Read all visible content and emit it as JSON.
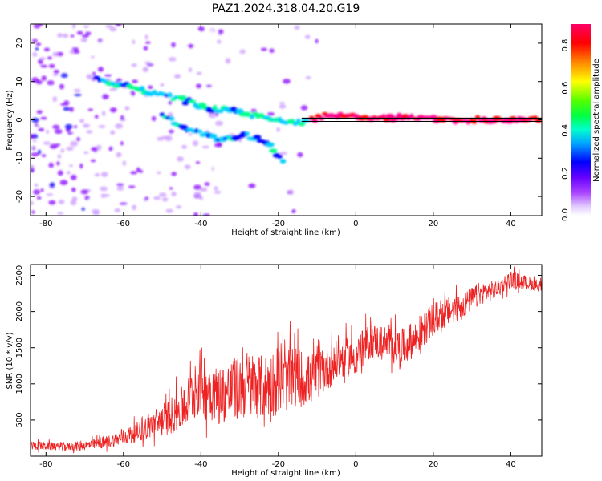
{
  "title": "PAZ1.2024.318.04.20.G19",
  "colors": {
    "snr_line": "#ee2222",
    "track_line": "#000000",
    "colormap": [
      "#ffffff",
      "#cc99ff",
      "#8800ff",
      "#0000ff",
      "#00ccff",
      "#00ff88",
      "#00ff00",
      "#ffff00",
      "#ff8800",
      "#ff0000",
      "#ff0088"
    ]
  },
  "chart_data": [
    {
      "type": "heatmap",
      "title": "",
      "xlabel": "Height of straight line (km)",
      "ylabel": "Frequency (Hz)",
      "xlim": [
        -84,
        48
      ],
      "ylim": [
        -25,
        25
      ],
      "x_ticks": [
        "-80",
        "-60",
        "-40",
        "-20",
        "0",
        "20",
        "40"
      ],
      "y_ticks": [
        "20",
        "10",
        "0",
        "-10",
        "-20"
      ],
      "colorbar": {
        "label": "Normalized spectral amplitude",
        "range": [
          0.0,
          0.9
        ],
        "ticks": [
          "0.0",
          "0.2",
          "0.4",
          "0.6",
          "0.8"
        ]
      },
      "dominant_track": [
        {
          "x": -67,
          "y": 10.5
        },
        {
          "x": -60,
          "y": 9
        },
        {
          "x": -52,
          "y": 7
        },
        {
          "x": -44,
          "y": 5
        },
        {
          "x": -38,
          "y": 3
        },
        {
          "x": -30,
          "y": 2
        },
        {
          "x": -22,
          "y": 0
        },
        {
          "x": -14,
          "y": -0.5
        },
        {
          "x": -8,
          "y": 1
        },
        {
          "x": 0,
          "y": 1
        },
        {
          "x": 8,
          "y": 0.5
        },
        {
          "x": 16,
          "y": 0.5
        },
        {
          "x": 24,
          "y": 0
        },
        {
          "x": 48,
          "y": 0
        }
      ],
      "secondary_track": [
        {
          "x": -50,
          "y": 1
        },
        {
          "x": -42,
          "y": -3
        },
        {
          "x": -36,
          "y": -5
        },
        {
          "x": -28,
          "y": -4
        },
        {
          "x": -23,
          "y": -6
        },
        {
          "x": -18,
          "y": -12
        }
      ],
      "reference_line_y": 0
    },
    {
      "type": "line",
      "title": "",
      "xlabel": "Height of straight line (km)",
      "ylabel": "SNR (10 * v/v)",
      "xlim": [
        -84,
        48
      ],
      "ylim": [
        0,
        2650
      ],
      "x_ticks": [
        "-80",
        "-60",
        "-40",
        "-20",
        "0",
        "20",
        "40"
      ],
      "y_ticks": [
        "500",
        "1000",
        "1500",
        "2000",
        "2500"
      ],
      "series": [
        {
          "x": [
            -84,
            -80,
            -76,
            -72,
            -68,
            -64,
            -60,
            -56,
            -52,
            -48,
            -44,
            -40,
            -36,
            -32,
            -28,
            -24,
            -20,
            -16,
            -12,
            -8,
            -4,
            0,
            4,
            8,
            12,
            16,
            20,
            24,
            28,
            32,
            36,
            40,
            44,
            48
          ],
          "values": [
            150,
            140,
            130,
            140,
            160,
            200,
            260,
            350,
            450,
            550,
            700,
            1050,
            850,
            900,
            1000,
            950,
            1050,
            1100,
            1050,
            1200,
            1350,
            1400,
            1600,
            1550,
            1500,
            1650,
            1900,
            2000,
            2100,
            2250,
            2300,
            2450,
            2400,
            2350
          ],
          "spread": [
            80,
            70,
            70,
            80,
            90,
            110,
            130,
            180,
            250,
            320,
            400,
            600,
            500,
            550,
            600,
            550,
            600,
            550,
            450,
            400,
            350,
            350,
            300,
            320,
            320,
            300,
            280,
            250,
            220,
            200,
            160,
            150,
            120,
            100
          ]
        }
      ]
    }
  ]
}
